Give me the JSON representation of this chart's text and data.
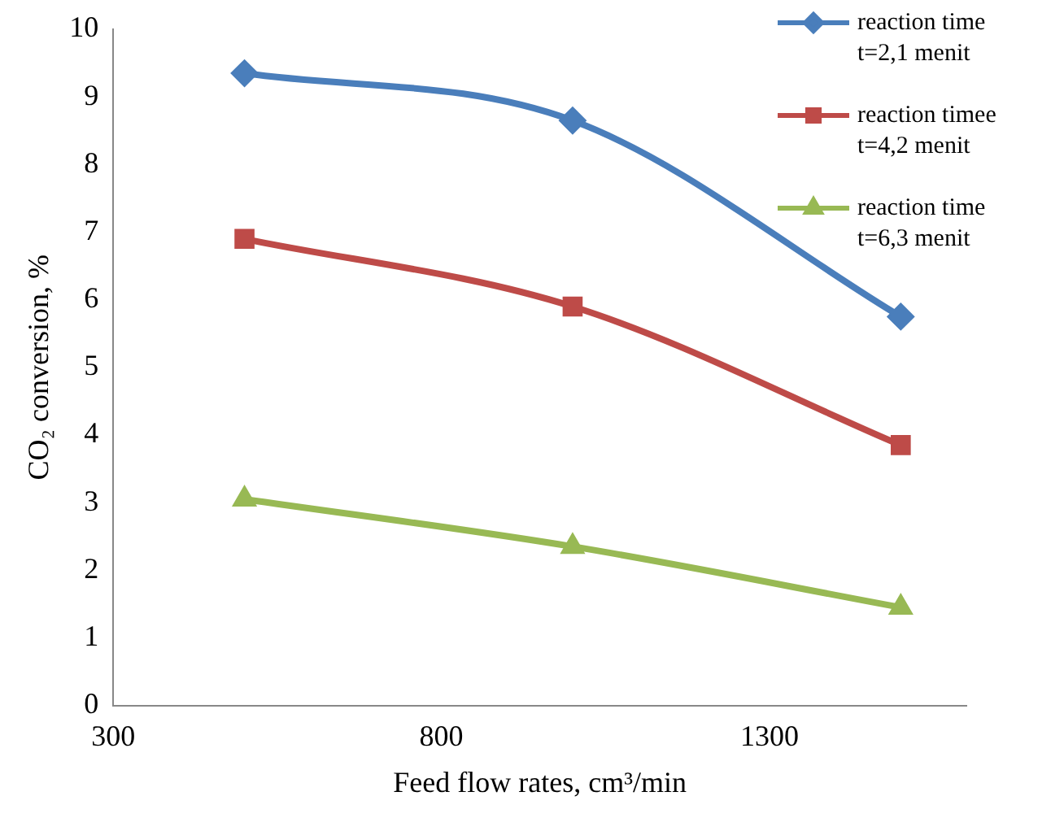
{
  "chart_data": {
    "type": "line",
    "xlabel": "Feed flow rates, cm³/min",
    "ylabel": "CO₂ conversion, %",
    "x": [
      500,
      1000,
      1500
    ],
    "series": [
      {
        "name": "reaction time t=2,1 menit",
        "color": "#4a7ebb",
        "marker": "diamond",
        "values": [
          9.35,
          8.65,
          5.75
        ]
      },
      {
        "name": "reaction timee t=4,2 menit",
        "color": "#be4b48",
        "marker": "square",
        "values": [
          6.9,
          5.9,
          3.85
        ]
      },
      {
        "name": "reaction time t=6,3 menit",
        "color": "#98b954",
        "marker": "triangle",
        "values": [
          3.05,
          2.35,
          1.45
        ]
      }
    ],
    "xlim": [
      300,
      1600
    ],
    "xticks": [
      300,
      800,
      1300
    ],
    "ylim": [
      0,
      10
    ],
    "yticks": [
      0,
      1,
      2,
      3,
      4,
      5,
      6,
      7,
      8,
      9,
      10
    ],
    "grid": false,
    "legend": "top right"
  }
}
